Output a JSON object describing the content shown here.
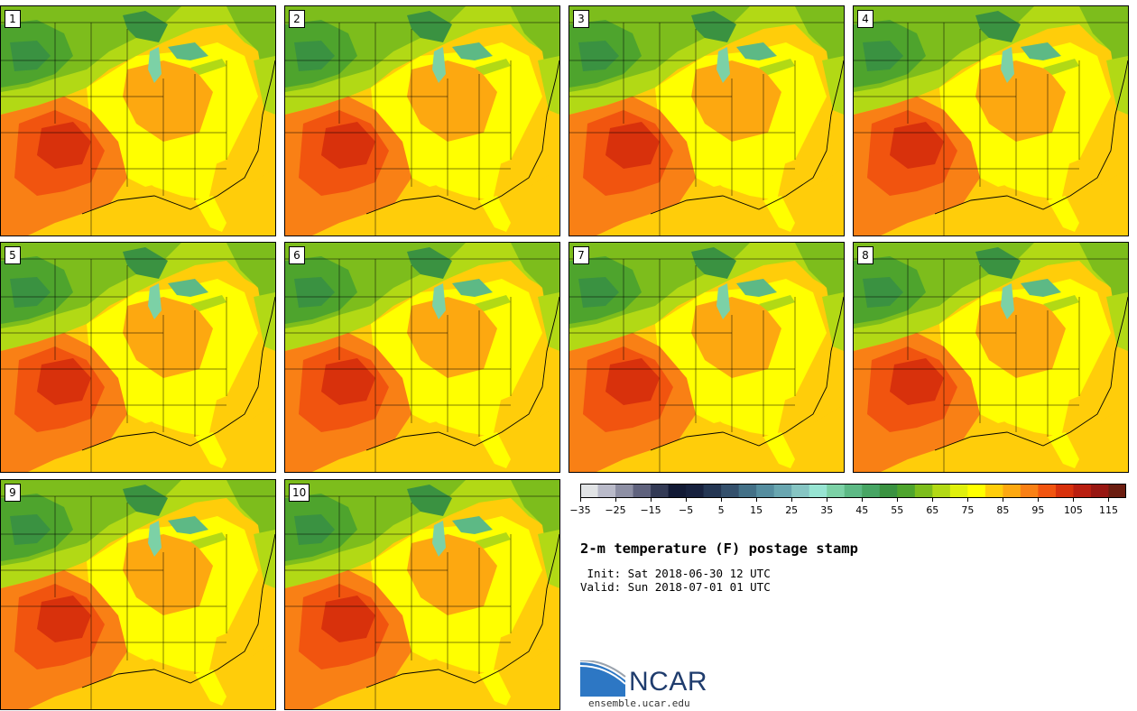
{
  "title": "2-m temperature (F) postage stamp",
  "init_line": " Init: Sat 2018-06-30 12 UTC",
  "valid_line": "Valid: Sun 2018-07-01 01 UTC",
  "logo": {
    "name": "NCAR",
    "url": "ensemble.ucar.edu"
  },
  "members": [
    "1",
    "2",
    "3",
    "4",
    "5",
    "6",
    "7",
    "8",
    "9",
    "10"
  ],
  "colorbar": {
    "min": -35,
    "max": 120,
    "step": 5,
    "tick_labels": [
      "−35",
      "−25",
      "−15",
      "−5",
      "5",
      "15",
      "25",
      "35",
      "45",
      "55",
      "65",
      "75",
      "85",
      "95",
      "105",
      "115"
    ],
    "tick_values": [
      -35,
      -25,
      -15,
      -5,
      5,
      15,
      25,
      35,
      45,
      55,
      65,
      75,
      85,
      95,
      105,
      115
    ],
    "colors": [
      "#e1e3e5",
      "#b9bac9",
      "#8d8fa4",
      "#5f627d",
      "#333a55",
      "#121a35",
      "#17213e",
      "#243653",
      "#34506c",
      "#437087",
      "#558d9f",
      "#69a6b0",
      "#86c5c3",
      "#97e4d2",
      "#7cd1a6",
      "#5db985",
      "#47a564",
      "#3a9241",
      "#4ea42d",
      "#7dbd1c",
      "#b2d915",
      "#e0f00c",
      "#ffff00",
      "#ffcd0a",
      "#fda810",
      "#f98015",
      "#f1540f",
      "#d8310c",
      "#b91e10",
      "#981712",
      "#6b1d10"
    ]
  }
}
